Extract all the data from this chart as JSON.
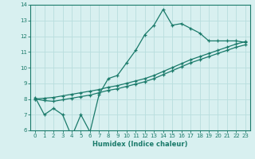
{
  "xlabel": "Humidex (Indice chaleur)",
  "x": [
    0,
    1,
    2,
    3,
    4,
    5,
    6,
    7,
    8,
    9,
    10,
    11,
    12,
    13,
    14,
    15,
    16,
    17,
    18,
    19,
    20,
    21,
    22,
    23
  ],
  "line_max": [
    8.1,
    7.0,
    7.4,
    7.0,
    5.6,
    7.0,
    5.9,
    8.3,
    9.3,
    9.5,
    10.3,
    11.1,
    12.1,
    12.7,
    13.7,
    12.7,
    12.8,
    12.5,
    12.2,
    11.7,
    11.7,
    11.7,
    11.7,
    11.6
  ],
  "line_mean": [
    8.0,
    8.05,
    8.1,
    8.2,
    8.3,
    8.4,
    8.5,
    8.6,
    8.75,
    8.85,
    9.0,
    9.15,
    9.3,
    9.5,
    9.75,
    10.0,
    10.25,
    10.5,
    10.7,
    10.9,
    11.1,
    11.3,
    11.5,
    11.65
  ],
  "line_min": [
    8.0,
    7.9,
    7.85,
    7.95,
    8.05,
    8.15,
    8.25,
    8.4,
    8.55,
    8.65,
    8.8,
    8.95,
    9.1,
    9.3,
    9.55,
    9.8,
    10.05,
    10.3,
    10.5,
    10.7,
    10.9,
    11.1,
    11.3,
    11.45
  ],
  "color": "#1a7a6a",
  "bg_color": "#d8f0f0",
  "grid_color": "#b8dede",
  "ylim": [
    6,
    14
  ],
  "xlim": [
    -0.5,
    23.5
  ],
  "yticks": [
    6,
    7,
    8,
    9,
    10,
    11,
    12,
    13,
    14
  ],
  "xticks": [
    0,
    1,
    2,
    3,
    4,
    5,
    6,
    7,
    8,
    9,
    10,
    11,
    12,
    13,
    14,
    15,
    16,
    17,
    18,
    19,
    20,
    21,
    22,
    23
  ]
}
